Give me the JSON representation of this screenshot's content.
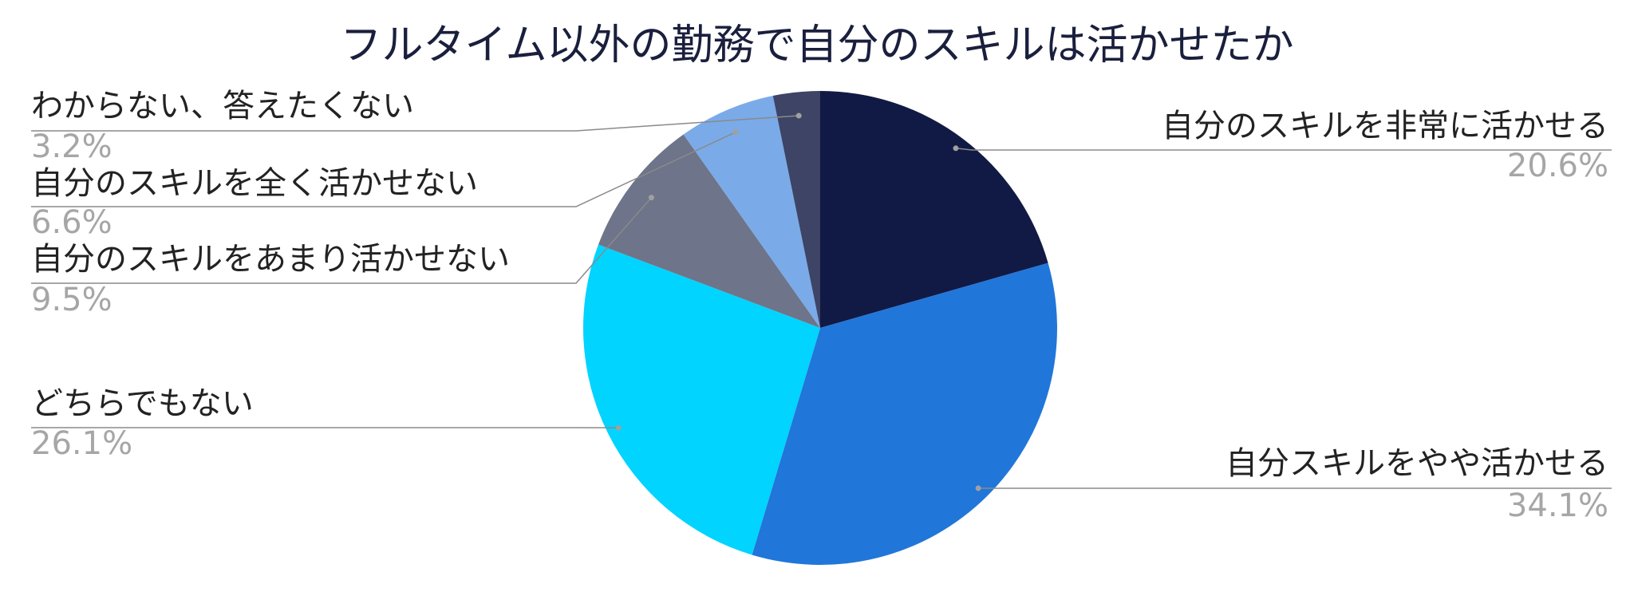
{
  "chart_data": {
    "type": "pie",
    "title": "フルタイム以外の勤務で自分のスキルは活かせたか",
    "categories": [
      "自分のスキルを非常に活かせる",
      "自分スキルをやや活かせる",
      "どちらでもない",
      "自分のスキルをあまり活かせない",
      "自分のスキルを全く活かせない",
      "わからない、答えたくない"
    ],
    "values": [
      20.6,
      34.1,
      26.1,
      9.5,
      6.6,
      3.2
    ],
    "value_labels": [
      "20.6%",
      "34.1%",
      "26.1%",
      "9.5%",
      "6.6%",
      "3.2%"
    ],
    "colors": [
      "#111a44",
      "#2176d9",
      "#00d4ff",
      "#6e7489",
      "#7aabe8",
      "#3d4466"
    ]
  }
}
